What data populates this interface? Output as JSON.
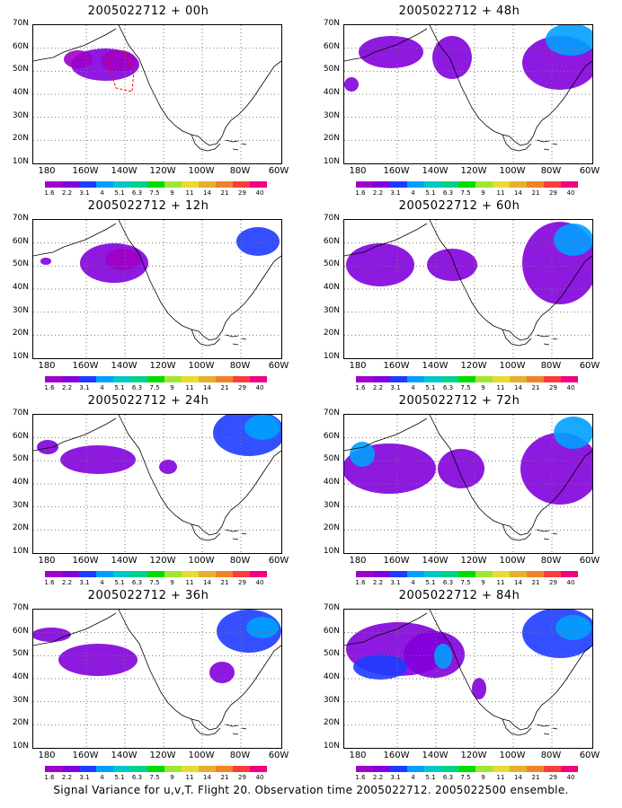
{
  "panels": [
    {
      "title": "2005022712 + 00h"
    },
    {
      "title": "2005022712 + 48h"
    },
    {
      "title": "2005022712 + 12h"
    },
    {
      "title": "2005022712 + 60h"
    },
    {
      "title": "2005022712 + 24h"
    },
    {
      "title": "2005022712 + 72h"
    },
    {
      "title": "2005022712 + 36h"
    },
    {
      "title": "2005022712 + 84h"
    }
  ],
  "lat_labels": [
    "70N",
    "60N",
    "50N",
    "40N",
    "30N",
    "20N",
    "10N"
  ],
  "lon_labels": [
    "180",
    "160W",
    "140W",
    "120W",
    "100W",
    "80W",
    "60W"
  ],
  "colorbar": {
    "labels": [
      "1.6",
      "2.2",
      "3.1",
      "4",
      "5.1",
      "6.3",
      "7.5",
      "9",
      "11",
      "14",
      "21",
      "29",
      "40"
    ],
    "colors": [
      "#a000c8",
      "#8200dc",
      "#1e3cff",
      "#00a0ff",
      "#00c8c8",
      "#00d28c",
      "#00dc00",
      "#a0e632",
      "#e6dc32",
      "#e6af2d",
      "#f08228",
      "#fa3c3c",
      "#f00082"
    ]
  },
  "footer": "Signal Variance for u,v,T. Flight 20. Observation time 2005022712. 2005022500 ensemble."
}
